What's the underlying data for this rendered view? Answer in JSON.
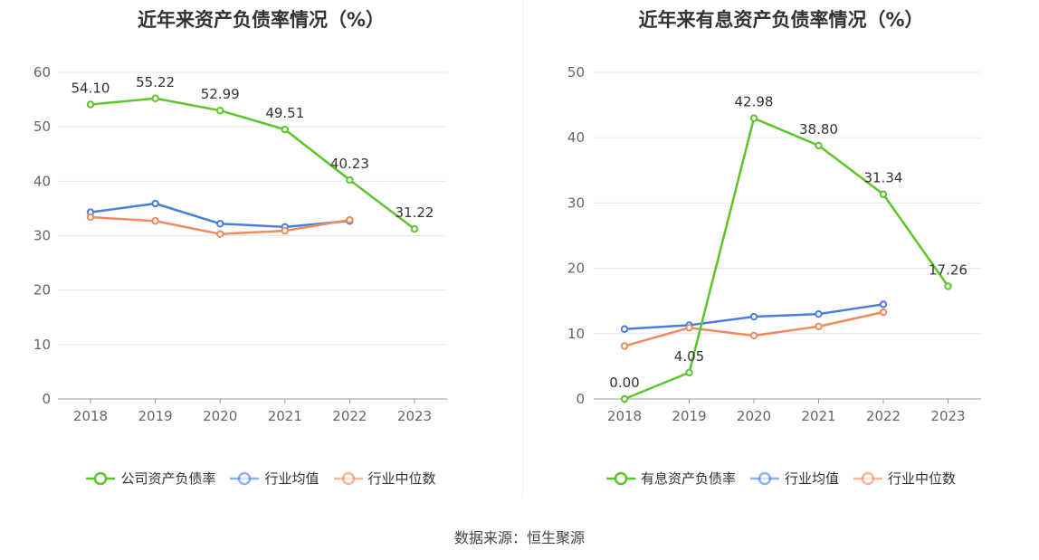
{
  "source": "数据来源：恒生聚源",
  "chart_data": [
    {
      "type": "line",
      "title": "近年来资产负债率情况（%）",
      "categories": [
        "2018",
        "2019",
        "2020",
        "2021",
        "2022",
        "2023"
      ],
      "ylim": [
        0,
        60
      ],
      "yticks": [
        0,
        10,
        20,
        30,
        40,
        50,
        60
      ],
      "grid": true,
      "legend_position": "bottom",
      "series": [
        {
          "name": "公司资产负债率",
          "color": "#5cc52c",
          "values": [
            54.1,
            55.22,
            52.99,
            49.51,
            40.23,
            31.22
          ],
          "labels": [
            "54.10",
            "55.22",
            "52.99",
            "49.51",
            "40.23",
            "31.22"
          ]
        },
        {
          "name": "行业均值",
          "color": "#4a7de0",
          "values": [
            34.3,
            35.9,
            32.2,
            31.6,
            32.7,
            null
          ]
        },
        {
          "name": "行业中位数",
          "color": "#f08a5d",
          "values": [
            33.4,
            32.7,
            30.3,
            30.9,
            32.9,
            null
          ]
        }
      ]
    },
    {
      "type": "line",
      "title": "近年来有息资产负债率情况（%）",
      "categories": [
        "2018",
        "2019",
        "2020",
        "2021",
        "2022",
        "2023"
      ],
      "ylim": [
        0,
        50
      ],
      "yticks": [
        0,
        10,
        20,
        30,
        40,
        50
      ],
      "grid": true,
      "legend_position": "bottom",
      "series": [
        {
          "name": "有息资产负债率",
          "color": "#5cc52c",
          "values": [
            0.0,
            4.05,
            42.98,
            38.8,
            31.34,
            17.26
          ],
          "labels": [
            "0.00",
            "4.05",
            "42.98",
            "38.80",
            "31.34",
            "17.26"
          ]
        },
        {
          "name": "行业均值",
          "color": "#4a7de0",
          "values": [
            10.7,
            11.3,
            12.6,
            13.0,
            14.5,
            null
          ]
        },
        {
          "name": "行业中位数",
          "color": "#f08a5d",
          "values": [
            8.1,
            10.9,
            9.7,
            11.1,
            13.3,
            null
          ]
        }
      ]
    }
  ]
}
